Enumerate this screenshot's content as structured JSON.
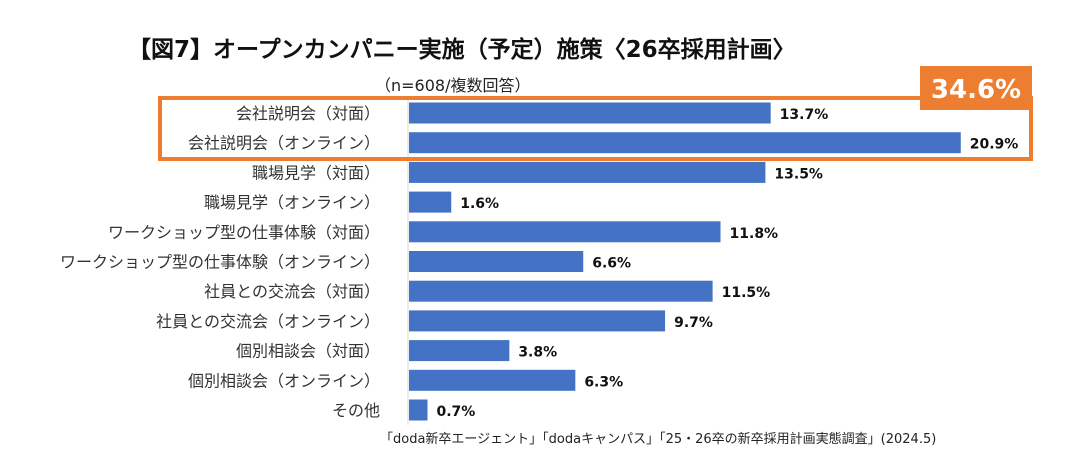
{
  "chart_data": {
    "type": "bar",
    "orientation": "horizontal",
    "title": "【図7】オープンカンパニー実施（予定）施策〈26卒採用計画〉",
    "subtitle": "（n=608/複数回答）",
    "source": "「doda新卒エージェント」「dodaキャンパス」「25・26卒の新卒採用計画実態調査」(2024.5)",
    "categories": [
      "会社説明会（対面）",
      "会社説明会（オンライン）",
      "職場見学（対面）",
      "職場見学（オンライン）",
      "ワークショップ型の仕事体験（対面）",
      "ワークショップ型の仕事体験（オンライン）",
      "社員との交流会（対面）",
      "社員との交流会（オンライン）",
      "個別相談会（対面）",
      "個別相談会（オンライン）",
      "その他"
    ],
    "values": [
      13.7,
      20.9,
      13.5,
      1.6,
      11.8,
      6.6,
      11.5,
      9.7,
      3.8,
      6.3,
      0.7
    ],
    "unit": "%",
    "xlim": [
      0,
      25
    ],
    "grid": false,
    "highlight": {
      "categories": [
        "会社説明会（対面）",
        "会社説明会（オンライン）"
      ],
      "label": "34.6%"
    },
    "colors": {
      "bar": "#4472C4",
      "highlight": "#ED7D31"
    }
  }
}
